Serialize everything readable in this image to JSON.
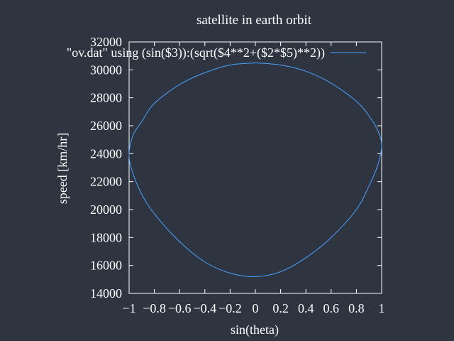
{
  "chart_data": {
    "type": "line",
    "title": "satellite in earth orbit",
    "xlabel": "sin(theta)",
    "ylabel": "speed [km/hr]",
    "xlim": [
      -1,
      1
    ],
    "ylim": [
      14000,
      32000
    ],
    "x_ticks": [
      -1,
      -0.8,
      -0.6,
      -0.4,
      -0.2,
      0,
      0.2,
      0.4,
      0.6,
      0.8,
      1
    ],
    "x_tick_labels": [
      "−1",
      "−0.8",
      "−0.6",
      "−0.4",
      "−0.2",
      "0",
      "0.2",
      "0.4",
      "0.6",
      "0.8",
      "1"
    ],
    "y_ticks": [
      14000,
      16000,
      18000,
      20000,
      22000,
      24000,
      26000,
      28000,
      30000,
      32000
    ],
    "y_tick_labels": [
      "14000",
      "16000",
      "18000",
      "20000",
      "22000",
      "24000",
      "26000",
      "28000",
      "30000",
      "32000"
    ],
    "grid": false,
    "legend_position": "top-right",
    "series_color": "#4aa3ff",
    "series": [
      {
        "name": "\"ov.dat\" using (sin($3)):(sqrt($4**2+($2*$5)**2))",
        "x": [
          0.0,
          0.2,
          0.4,
          0.6,
          0.8,
          0.9,
          0.97,
          1.0,
          0.97,
          0.9,
          0.8,
          0.6,
          0.4,
          0.2,
          0.0,
          -0.2,
          -0.4,
          -0.6,
          -0.8,
          -0.9,
          -0.97,
          -1.0,
          -0.97,
          -0.9,
          -0.8,
          -0.6,
          -0.4,
          -0.2,
          0.0
        ],
        "y": [
          30500,
          30350,
          29900,
          29050,
          27750,
          26700,
          25650,
          24600,
          23200,
          21700,
          20000,
          18000,
          16550,
          15550,
          15200,
          15450,
          16250,
          17700,
          19700,
          21100,
          22600,
          23900,
          25300,
          26300,
          27600,
          28950,
          29800,
          30350,
          30500
        ]
      }
    ]
  }
}
